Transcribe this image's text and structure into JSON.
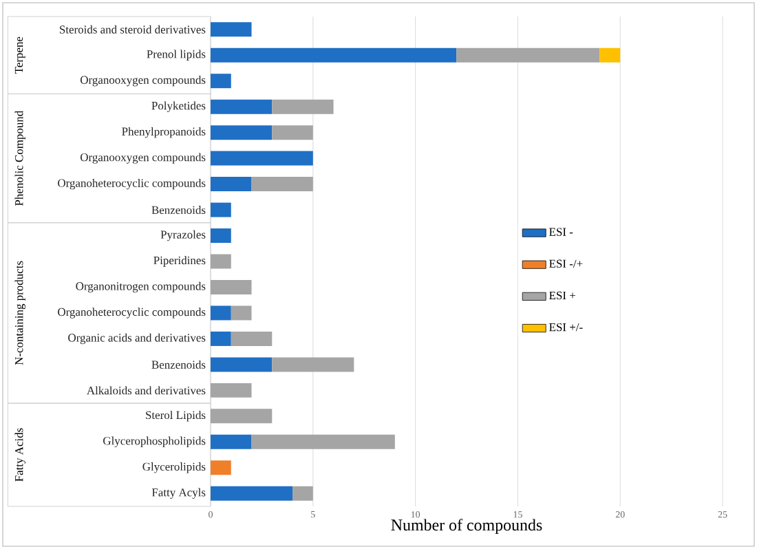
{
  "chart_data": {
    "type": "bar",
    "orientation": "horizontal",
    "stacked": true,
    "categories": [
      "Steroids and steroid derivatives",
      "Prenol lipids",
      "Organooxygen compounds",
      "Polyketides",
      "Phenylpropanoids",
      "Organooxygen compounds",
      "Organoheterocyclic compounds",
      "Benzenoids",
      "Pyrazoles",
      "Piperidines",
      "Organonitrogen compounds",
      "Organoheterocyclic compounds",
      "Organic acids and derivatives",
      "Benzenoids",
      "Alkaloids and derivatives",
      "Sterol Lipids",
      "Glycerophospholipids",
      "Glycerolipids",
      "Fatty Acyls"
    ],
    "series": [
      {
        "name": "ESI -",
        "color": "#1f6fc5",
        "values": [
          2,
          12,
          1,
          3,
          3,
          5,
          2,
          1,
          1,
          null,
          null,
          1,
          1,
          3,
          null,
          null,
          2,
          null,
          4
        ]
      },
      {
        "name": "ESI -/+",
        "color": "#f07f2a",
        "values": [
          null,
          null,
          null,
          null,
          null,
          null,
          null,
          null,
          null,
          null,
          null,
          null,
          null,
          null,
          null,
          null,
          null,
          1,
          null
        ]
      },
      {
        "name": "ESI +",
        "color": "#a5a5a5",
        "values": [
          null,
          7,
          null,
          3,
          2,
          null,
          3,
          null,
          null,
          1,
          2,
          1,
          2,
          4,
          2,
          3,
          7,
          null,
          1
        ]
      },
      {
        "name": "ESI +/-",
        "color": "#ffc000",
        "values": [
          null,
          1,
          null,
          null,
          null,
          null,
          null,
          null,
          null,
          null,
          null,
          null,
          null,
          null,
          null,
          null,
          null,
          null,
          null
        ]
      }
    ],
    "xlabel": "Number of compounds",
    "xlim": [
      0,
      25
    ],
    "xticks": [
      0,
      5,
      10,
      15,
      20,
      25
    ],
    "grid": "x",
    "legend": "right",
    "annotations": [
      "Terpene",
      "Phenolic Compound",
      "N-containing products",
      "Fatty Acids"
    ]
  }
}
